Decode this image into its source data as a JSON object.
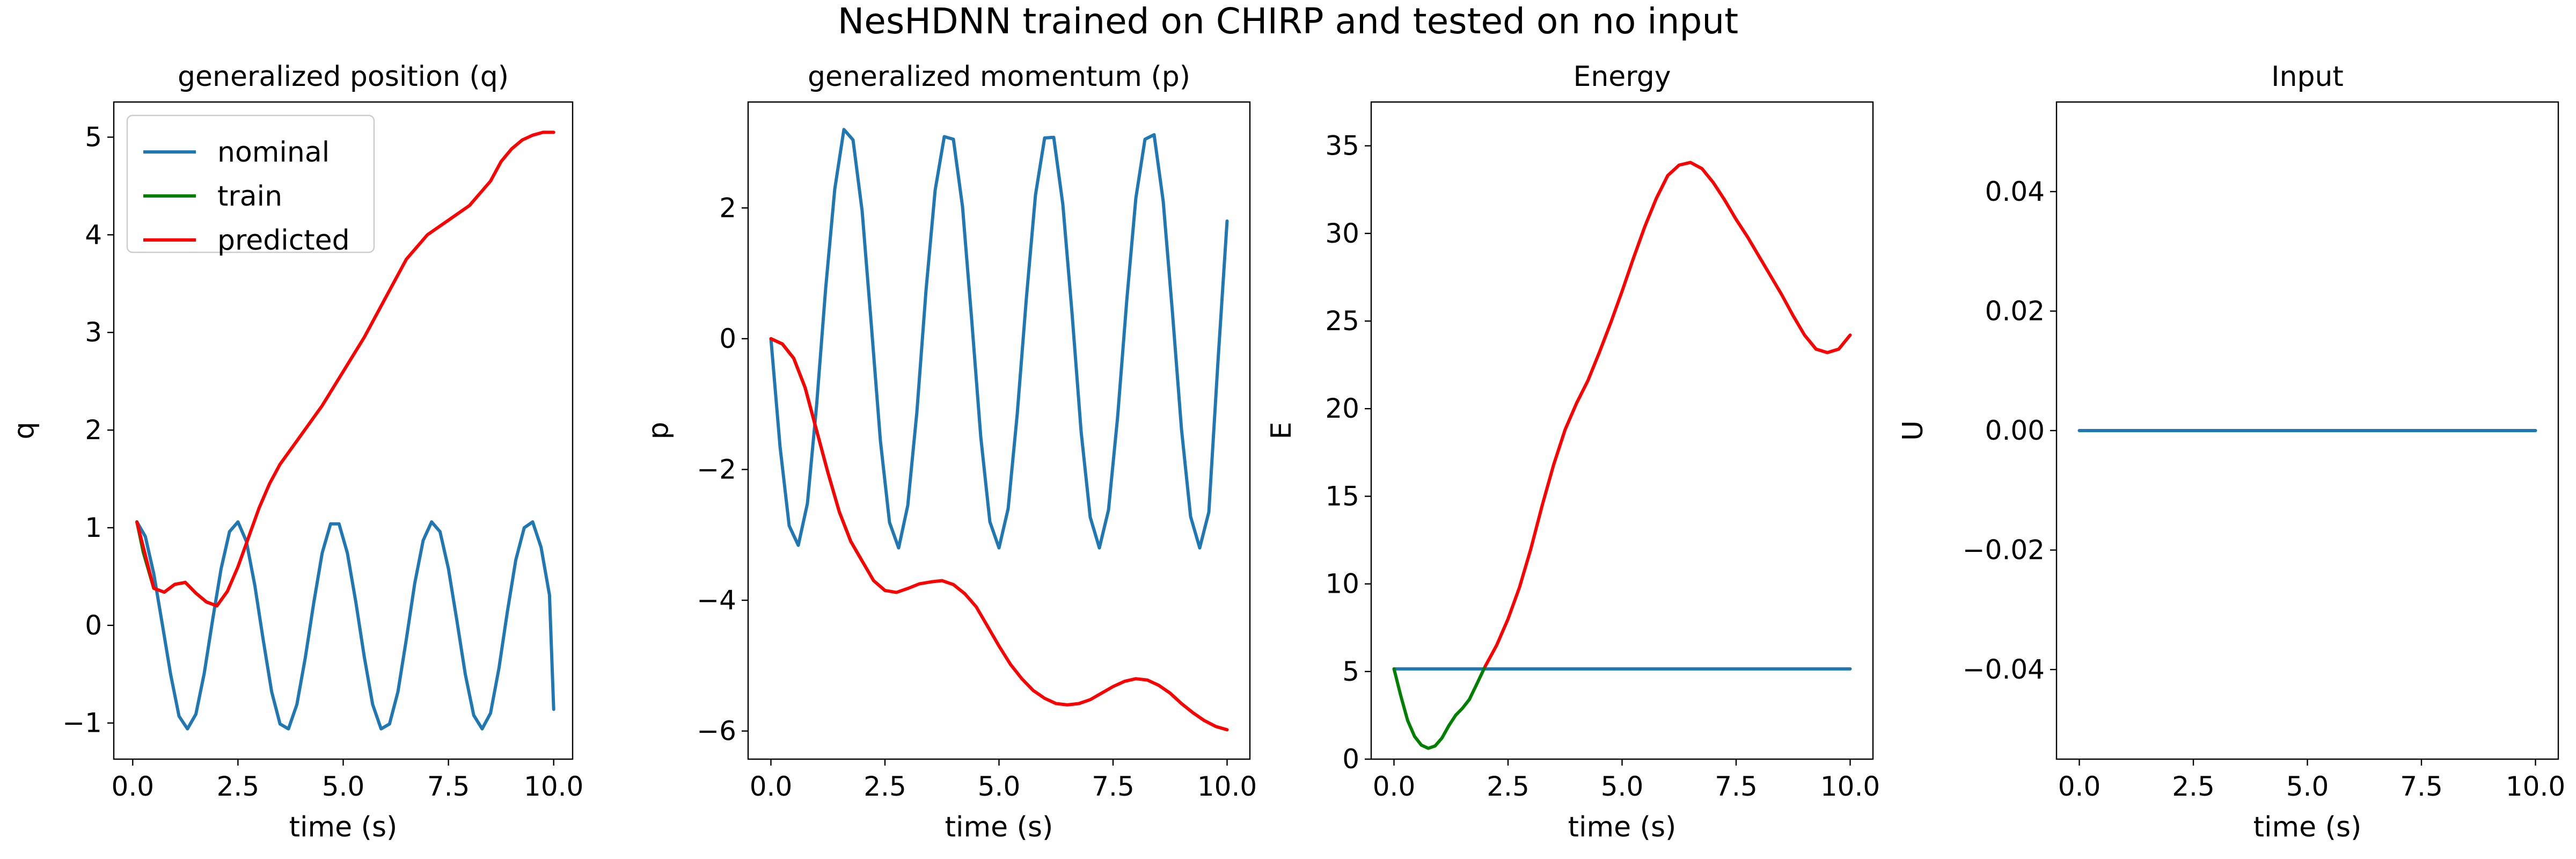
{
  "figure": {
    "suptitle": "NesHDNN trained on CHIRP and tested on no input"
  },
  "colors": {
    "nominal": "#1f77b4",
    "train": "#008000",
    "predicted": "#ff0000"
  },
  "chart_data": [
    {
      "type": "line",
      "title": "generalized position (q)",
      "xlabel": "time (s)",
      "ylabel": "q",
      "xlim": [
        -0.45,
        10.45
      ],
      "ylim": [
        -1.37,
        5.36
      ],
      "xticks": [
        0.0,
        2.5,
        5.0,
        7.5,
        10.0
      ],
      "xtick_labels": [
        "0.0",
        "2.5",
        "5.0",
        "7.5",
        "10.0"
      ],
      "yticks": [
        -1,
        0,
        1,
        2,
        3,
        4,
        5
      ],
      "ytick_labels": [
        "−1",
        "0",
        "1",
        "2",
        "3",
        "4",
        "5"
      ],
      "grid": false,
      "legend": {
        "position": "top-left",
        "entries": [
          {
            "name": "nominal",
            "color": "#1f77b4"
          },
          {
            "name": "train",
            "color": "#008000"
          },
          {
            "name": "predicted",
            "color": "#ff0000"
          }
        ]
      },
      "series": [
        {
          "name": "nominal",
          "color": "#1f77b4",
          "x": [
            0.1,
            0.3,
            0.5,
            0.7,
            0.9,
            1.1,
            1.3,
            1.5,
            1.7,
            1.9,
            2.1,
            2.3,
            2.5,
            2.7,
            2.9,
            3.1,
            3.3,
            3.5,
            3.7,
            3.9,
            4.1,
            4.3,
            4.5,
            4.7,
            4.9,
            5.1,
            5.3,
            5.5,
            5.7,
            5.9,
            6.1,
            6.3,
            6.5,
            6.7,
            6.9,
            7.1,
            7.3,
            7.5,
            7.7,
            7.9,
            8.1,
            8.3,
            8.5,
            8.7,
            8.9,
            9.1,
            9.3,
            9.5,
            9.7,
            9.9,
            10.0
          ],
          "y": [
            1.06,
            0.91,
            0.53,
            0.02,
            -0.5,
            -0.93,
            -1.06,
            -0.91,
            -0.49,
            0.06,
            0.58,
            0.96,
            1.06,
            0.86,
            0.41,
            -0.15,
            -0.68,
            -1.01,
            -1.06,
            -0.81,
            -0.33,
            0.23,
            0.74,
            1.04,
            1.04,
            0.74,
            0.24,
            -0.32,
            -0.81,
            -1.06,
            -1.01,
            -0.68,
            -0.14,
            0.43,
            0.87,
            1.06,
            0.96,
            0.58,
            0.05,
            -0.5,
            -0.92,
            -1.06,
            -0.9,
            -0.44,
            0.14,
            0.67,
            1.0,
            1.06,
            0.8,
            0.31,
            -0.86
          ]
        },
        {
          "name": "train",
          "color": "#008000",
          "x": [
            0.1,
            0.25,
            0.5,
            0.75,
            1.0,
            1.25,
            1.5,
            1.75,
            2.0
          ],
          "y": [
            1.06,
            0.75,
            0.38,
            0.34,
            0.42,
            0.44,
            0.33,
            0.24,
            0.2
          ]
        },
        {
          "name": "predicted",
          "color": "#ff0000",
          "x": [
            0.1,
            0.5,
            0.75,
            1.0,
            1.25,
            1.5,
            1.75,
            2.0,
            2.25,
            2.5,
            2.75,
            3.0,
            3.25,
            3.5,
            4.0,
            4.5,
            5.0,
            5.5,
            6.0,
            6.5,
            7.0,
            7.5,
            8.0,
            8.5,
            8.75,
            9.0,
            9.25,
            9.5,
            9.75,
            10.0
          ],
          "y": [
            1.06,
            0.38,
            0.34,
            0.42,
            0.44,
            0.33,
            0.24,
            0.2,
            0.35,
            0.6,
            0.9,
            1.2,
            1.45,
            1.65,
            1.95,
            2.25,
            2.6,
            2.95,
            3.35,
            3.75,
            4.0,
            4.15,
            4.3,
            4.55,
            4.75,
            4.88,
            4.97,
            5.02,
            5.05,
            5.05
          ]
        }
      ]
    },
    {
      "type": "line",
      "title": "generalized momentum (p)",
      "xlabel": "time (s)",
      "ylabel": "p",
      "xlim": [
        -0.5,
        10.5
      ],
      "ylim": [
        -6.43,
        3.62
      ],
      "xticks": [
        0.0,
        2.5,
        5.0,
        7.5,
        10.0
      ],
      "xtick_labels": [
        "0.0",
        "2.5",
        "5.0",
        "7.5",
        "10.0"
      ],
      "yticks": [
        -6,
        -4,
        -2,
        0,
        2
      ],
      "ytick_labels": [
        "−6",
        "−4",
        "−2",
        "0",
        "2"
      ],
      "grid": false,
      "series": [
        {
          "name": "nominal",
          "color": "#1f77b4",
          "x": [
            0.0,
            0.2,
            0.4,
            0.6,
            0.8,
            1.0,
            1.2,
            1.4,
            1.6,
            1.8,
            2.0,
            2.2,
            2.4,
            2.6,
            2.8,
            3.0,
            3.2,
            3.4,
            3.6,
            3.8,
            4.0,
            4.2,
            4.4,
            4.6,
            4.8,
            5.0,
            5.2,
            5.4,
            5.6,
            5.8,
            6.0,
            6.2,
            6.4,
            6.6,
            6.8,
            7.0,
            7.2,
            7.4,
            7.6,
            7.8,
            8.0,
            8.2,
            8.4,
            8.6,
            8.8,
            9.0,
            9.2,
            9.4,
            9.6,
            9.8,
            10.0
          ],
          "y": [
            0.0,
            -1.65,
            -2.86,
            -3.16,
            -2.52,
            -1.03,
            0.77,
            2.29,
            3.2,
            3.04,
            1.95,
            0.22,
            -1.56,
            -2.81,
            -3.2,
            -2.55,
            -1.12,
            0.74,
            2.27,
            3.09,
            3.05,
            2.02,
            0.3,
            -1.5,
            -2.8,
            -3.2,
            -2.6,
            -1.15,
            0.62,
            2.2,
            3.07,
            3.08,
            2.05,
            0.4,
            -1.42,
            -2.73,
            -3.2,
            -2.62,
            -1.2,
            0.58,
            2.15,
            3.05,
            3.12,
            2.1,
            0.42,
            -1.38,
            -2.72,
            -3.2,
            -2.65,
            -0.35,
            1.8
          ]
        },
        {
          "name": "train",
          "color": "#008000",
          "x": [
            0.0,
            0.25,
            0.5,
            0.75,
            1.0,
            1.25,
            1.5,
            1.75,
            2.0
          ],
          "y": [
            0.0,
            -0.08,
            -0.3,
            -0.75,
            -1.4,
            -2.05,
            -2.65,
            -3.1,
            -3.4
          ]
        },
        {
          "name": "predicted",
          "color": "#ff0000",
          "x": [
            0.0,
            0.25,
            0.5,
            0.75,
            1.0,
            1.25,
            1.5,
            1.75,
            2.0,
            2.25,
            2.5,
            2.75,
            3.0,
            3.25,
            3.5,
            3.75,
            4.0,
            4.25,
            4.5,
            4.75,
            5.0,
            5.25,
            5.5,
            5.75,
            6.0,
            6.25,
            6.5,
            6.75,
            7.0,
            7.25,
            7.5,
            7.75,
            8.0,
            8.25,
            8.5,
            8.75,
            9.0,
            9.25,
            9.5,
            9.75,
            10.0
          ],
          "y": [
            0.0,
            -0.08,
            -0.3,
            -0.75,
            -1.4,
            -2.05,
            -2.65,
            -3.1,
            -3.4,
            -3.7,
            -3.85,
            -3.88,
            -3.82,
            -3.75,
            -3.72,
            -3.7,
            -3.76,
            -3.9,
            -4.1,
            -4.4,
            -4.7,
            -4.98,
            -5.2,
            -5.38,
            -5.5,
            -5.58,
            -5.6,
            -5.58,
            -5.52,
            -5.42,
            -5.32,
            -5.24,
            -5.2,
            -5.22,
            -5.3,
            -5.42,
            -5.58,
            -5.72,
            -5.84,
            -5.93,
            -5.98
          ]
        }
      ]
    },
    {
      "type": "line",
      "title": "Energy",
      "xlabel": "time (s)",
      "ylabel": "E",
      "xlim": [
        -0.5,
        10.5
      ],
      "ylim": [
        0,
        37.5
      ],
      "xticks": [
        0.0,
        2.5,
        5.0,
        7.5,
        10.0
      ],
      "xtick_labels": [
        "0.0",
        "2.5",
        "5.0",
        "7.5",
        "10.0"
      ],
      "yticks": [
        0,
        5,
        10,
        15,
        20,
        25,
        30,
        35
      ],
      "ytick_labels": [
        "0",
        "5",
        "10",
        "15",
        "20",
        "25",
        "30",
        "35"
      ],
      "grid": false,
      "series": [
        {
          "name": "nominal",
          "color": "#1f77b4",
          "x": [
            0.0,
            10.0
          ],
          "y": [
            5.15,
            5.15
          ]
        },
        {
          "name": "train",
          "color": "#008000",
          "x": [
            0.0,
            0.15,
            0.3,
            0.45,
            0.6,
            0.75,
            0.9,
            1.05,
            1.2,
            1.35,
            1.5,
            1.65,
            1.8,
            2.0
          ],
          "y": [
            5.15,
            3.6,
            2.2,
            1.3,
            0.8,
            0.62,
            0.75,
            1.2,
            1.9,
            2.5,
            2.9,
            3.4,
            4.2,
            5.3
          ]
        },
        {
          "name": "predicted",
          "color": "#ff0000",
          "x": [
            2.0,
            2.25,
            2.5,
            2.75,
            3.0,
            3.25,
            3.5,
            3.75,
            4.0,
            4.25,
            4.5,
            4.75,
            5.0,
            5.25,
            5.5,
            5.75,
            6.0,
            6.25,
            6.5,
            6.75,
            7.0,
            7.25,
            7.5,
            7.75,
            8.0,
            8.25,
            8.5,
            8.75,
            9.0,
            9.25,
            9.5,
            9.75,
            10.0
          ],
          "y": [
            5.3,
            6.5,
            8.0,
            9.8,
            12.0,
            14.5,
            16.8,
            18.8,
            20.3,
            21.6,
            23.2,
            24.9,
            26.7,
            28.6,
            30.4,
            32.0,
            33.3,
            33.9,
            34.05,
            33.7,
            32.9,
            31.9,
            30.8,
            29.8,
            28.7,
            27.6,
            26.5,
            25.3,
            24.2,
            23.4,
            23.2,
            23.4,
            24.2
          ]
        }
      ]
    },
    {
      "type": "line",
      "title": "Input",
      "xlabel": "time (s)",
      "ylabel": "U",
      "xlim": [
        -0.5,
        10.5
      ],
      "ylim": [
        -0.055,
        0.055
      ],
      "xticks": [
        0.0,
        2.5,
        5.0,
        7.5,
        10.0
      ],
      "xtick_labels": [
        "0.0",
        "2.5",
        "5.0",
        "7.5",
        "10.0"
      ],
      "yticks": [
        -0.04,
        -0.02,
        0.0,
        0.02,
        0.04
      ],
      "ytick_labels": [
        "−0.04",
        "−0.02",
        "0.00",
        "0.02",
        "0.04"
      ],
      "grid": false,
      "series": [
        {
          "color": "#1f77b4",
          "x": [
            0.0,
            10.0
          ],
          "y": [
            0.0,
            0.0
          ]
        }
      ]
    }
  ]
}
